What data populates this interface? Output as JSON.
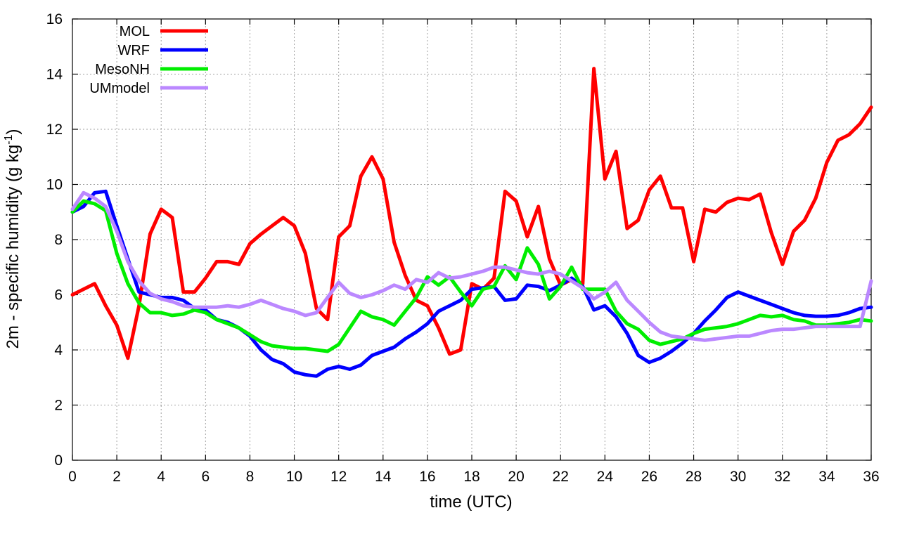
{
  "chart_data": {
    "type": "line",
    "title": "",
    "xlabel": "time (UTC)",
    "ylabel_main": "2m - specific humidity (g kg",
    "ylabel_sup": "-1",
    "ylabel_close": ")",
    "xlim": [
      0,
      36
    ],
    "ylim": [
      0,
      16
    ],
    "xticks": [
      0,
      2,
      4,
      6,
      8,
      10,
      12,
      14,
      16,
      18,
      20,
      22,
      24,
      26,
      28,
      30,
      32,
      34,
      36
    ],
    "yticks": [
      0,
      2,
      4,
      6,
      8,
      10,
      12,
      14,
      16
    ],
    "grid": true,
    "legend_position": "top-left",
    "series": [
      {
        "name": "MOL",
        "color": "#ff0000",
        "x": [
          0,
          1,
          1.5,
          2,
          2.5,
          3,
          3.5,
          4,
          4.5,
          5,
          5.5,
          6,
          6.5,
          7,
          7.5,
          8,
          8.5,
          9,
          9.5,
          10,
          10.5,
          11,
          11.5,
          12,
          12.5,
          13,
          13.5,
          14,
          14.5,
          15,
          15.5,
          16,
          16.5,
          17,
          17.5,
          18,
          18.5,
          19,
          19.5,
          20,
          20.5,
          21,
          21.5,
          22,
          22.5,
          23,
          23.5,
          24,
          24.5,
          25,
          25.5,
          26,
          26.5,
          27,
          27.5,
          28,
          28.5,
          29,
          29.5,
          30,
          30.5,
          31,
          31.5,
          32,
          32.5,
          33,
          33.5,
          34,
          34.5,
          35,
          35.5,
          36
        ],
        "values": [
          6.0,
          6.4,
          5.6,
          4.9,
          3.7,
          5.6,
          8.2,
          9.1,
          8.8,
          6.1,
          6.1,
          6.6,
          7.2,
          7.2,
          7.1,
          7.85,
          8.2,
          8.5,
          8.8,
          8.5,
          7.5,
          5.5,
          5.1,
          8.1,
          8.5,
          10.3,
          11.0,
          10.2,
          7.9,
          6.7,
          5.8,
          5.6,
          4.8,
          3.85,
          4.0,
          6.4,
          6.2,
          6.6,
          9.75,
          9.4,
          8.1,
          9.2,
          7.3,
          6.35,
          6.55,
          6.4,
          14.2,
          10.2,
          11.2,
          8.4,
          8.7,
          9.8,
          10.3,
          9.15,
          9.15,
          7.2,
          9.1,
          9.0,
          9.35,
          9.5,
          9.45,
          9.65,
          8.25,
          7.1,
          8.3,
          8.7,
          9.5,
          10.8,
          11.6,
          11.8,
          12.2,
          12.8
        ]
      },
      {
        "name": "WRF",
        "color": "#0000ff",
        "x": [
          0,
          0.5,
          1,
          1.5,
          2,
          2.5,
          3,
          3.5,
          4,
          4.5,
          5,
          5.5,
          6,
          6.5,
          7,
          7.5,
          8,
          8.5,
          9,
          9.5,
          10,
          10.5,
          11,
          11.5,
          12,
          12.5,
          13,
          13.5,
          14,
          14.5,
          15,
          15.5,
          16,
          16.5,
          17,
          17.5,
          18,
          18.5,
          19,
          19.5,
          20,
          20.5,
          21,
          21.5,
          22,
          22.5,
          23,
          23.5,
          24,
          24.5,
          25,
          25.5,
          26,
          26.5,
          27,
          27.5,
          28,
          28.5,
          29,
          29.5,
          30,
          30.5,
          31,
          31.5,
          32,
          32.5,
          33,
          33.5,
          34,
          34.5,
          35,
          35.5,
          36
        ],
        "values": [
          9.0,
          9.2,
          9.7,
          9.75,
          8.5,
          7.3,
          6.1,
          6.0,
          5.9,
          5.9,
          5.8,
          5.5,
          5.45,
          5.1,
          5.0,
          4.8,
          4.5,
          4.0,
          3.65,
          3.5,
          3.2,
          3.1,
          3.05,
          3.3,
          3.4,
          3.3,
          3.45,
          3.8,
          3.95,
          4.1,
          4.4,
          4.65,
          4.95,
          5.4,
          5.6,
          5.8,
          6.2,
          6.25,
          6.3,
          5.8,
          5.85,
          6.35,
          6.3,
          6.15,
          6.35,
          6.6,
          6.3,
          5.45,
          5.6,
          5.2,
          4.6,
          3.8,
          3.55,
          3.7,
          3.95,
          4.25,
          4.6,
          5.05,
          5.45,
          5.9,
          6.1,
          5.95,
          5.8,
          5.65,
          5.5,
          5.35,
          5.25,
          5.22,
          5.22,
          5.25,
          5.35,
          5.5,
          5.55
        ]
      },
      {
        "name": "MesoNH",
        "color": "#00ee00",
        "x": [
          0,
          0.5,
          1,
          1.5,
          2,
          2.5,
          3,
          3.5,
          4,
          4.5,
          5,
          5.5,
          6,
          6.5,
          7,
          7.5,
          8,
          8.5,
          9,
          9.5,
          10,
          10.5,
          11,
          11.5,
          12,
          12.5,
          13,
          13.5,
          14,
          14.5,
          15,
          15.5,
          16,
          16.5,
          17,
          17.5,
          18,
          18.5,
          19,
          19.5,
          20,
          20.5,
          21,
          21.5,
          22,
          22.5,
          23,
          23.5,
          24,
          24.5,
          25,
          25.5,
          26,
          26.5,
          27,
          27.5,
          28,
          28.5,
          29,
          29.5,
          30,
          30.5,
          31,
          31.5,
          32,
          32.5,
          33,
          33.5,
          34,
          34.5,
          35,
          35.5,
          36
        ],
        "values": [
          9.0,
          9.4,
          9.3,
          9.05,
          7.5,
          6.4,
          5.7,
          5.35,
          5.35,
          5.25,
          5.3,
          5.45,
          5.35,
          5.1,
          4.95,
          4.8,
          4.55,
          4.3,
          4.15,
          4.1,
          4.05,
          4.05,
          4.0,
          3.95,
          4.2,
          4.8,
          5.4,
          5.2,
          5.1,
          4.9,
          5.4,
          5.9,
          6.65,
          6.35,
          6.65,
          6.1,
          5.6,
          6.2,
          6.3,
          7.05,
          6.55,
          7.7,
          7.1,
          5.85,
          6.3,
          7.0,
          6.2,
          6.2,
          6.2,
          5.4,
          4.95,
          4.75,
          4.35,
          4.2,
          4.3,
          4.4,
          4.6,
          4.75,
          4.8,
          4.85,
          4.95,
          5.1,
          5.25,
          5.2,
          5.25,
          5.1,
          5.05,
          4.9,
          4.9,
          4.95,
          5.0,
          5.1,
          5.05
        ]
      },
      {
        "name": "UMmodel",
        "color": "#bb88ff",
        "x": [
          0,
          0.5,
          1,
          1.5,
          2,
          2.5,
          3,
          3.5,
          4,
          4.5,
          5,
          5.5,
          6,
          6.5,
          7,
          7.5,
          8,
          8.5,
          9,
          9.5,
          10,
          10.5,
          11,
          11.5,
          12,
          12.5,
          13,
          13.5,
          14,
          14.5,
          15,
          15.5,
          16,
          16.5,
          17,
          17.5,
          18,
          18.5,
          19,
          19.5,
          20,
          20.5,
          21,
          21.5,
          22,
          22.5,
          23,
          23.5,
          24,
          24.5,
          25,
          25.5,
          26,
          26.5,
          27,
          27.5,
          28,
          28.5,
          29,
          29.5,
          30,
          30.5,
          31,
          31.5,
          32,
          32.5,
          33,
          33.5,
          34,
          34.5,
          35,
          35.5,
          36
        ],
        "values": [
          9.1,
          9.7,
          9.5,
          9.2,
          8.3,
          7.2,
          6.5,
          6.05,
          5.85,
          5.75,
          5.6,
          5.55,
          5.55,
          5.55,
          5.6,
          5.55,
          5.65,
          5.8,
          5.65,
          5.5,
          5.4,
          5.25,
          5.35,
          5.9,
          6.45,
          6.05,
          5.9,
          6.0,
          6.15,
          6.35,
          6.2,
          6.55,
          6.45,
          6.8,
          6.6,
          6.65,
          6.75,
          6.85,
          7.0,
          7.0,
          6.9,
          6.8,
          6.75,
          6.85,
          6.75,
          6.5,
          6.25,
          5.85,
          6.1,
          6.45,
          5.8,
          5.4,
          5.0,
          4.65,
          4.5,
          4.45,
          4.4,
          4.35,
          4.4,
          4.45,
          4.5,
          4.5,
          4.6,
          4.7,
          4.75,
          4.75,
          4.8,
          4.85,
          4.85,
          4.85,
          4.85,
          4.85,
          6.5
        ]
      }
    ]
  }
}
